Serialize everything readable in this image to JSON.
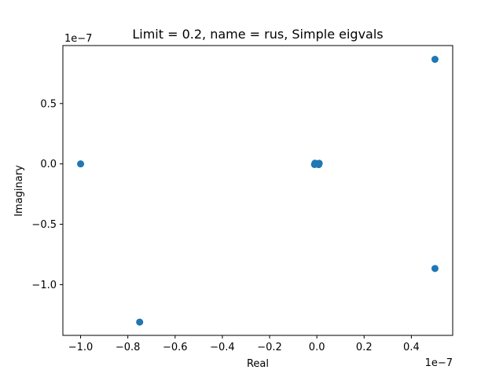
{
  "chart_data": {
    "type": "scatter",
    "title": "Limit = 0.2, name = rus, Simple eigvals",
    "xlabel": "Real",
    "ylabel": "Imaginary",
    "x_offset_label": "1e−7",
    "y_offset_label": "1e−7",
    "xlim": [
      -1.075,
      0.575
    ],
    "ylim": [
      -1.42,
      0.98
    ],
    "xticks": [
      -1.0,
      -0.8,
      -0.6,
      -0.4,
      -0.2,
      0.0,
      0.2,
      0.4
    ],
    "xtick_labels": [
      "−1.0",
      "−0.8",
      "−0.6",
      "−0.4",
      "−0.2",
      "0.0",
      "0.2",
      "0.4"
    ],
    "yticks": [
      -1.0,
      -0.5,
      0.0,
      0.5
    ],
    "ytick_labels": [
      "−1.0",
      "−0.5",
      "0.0",
      "0.5"
    ],
    "grid": false,
    "marker_color": "#1f77b4",
    "points": [
      {
        "x": -1.0,
        "y": 0.0
      },
      {
        "x": -0.75,
        "y": -1.31
      },
      {
        "x": 0.5,
        "y": 0.866
      },
      {
        "x": 0.5,
        "y": -0.866
      },
      {
        "x": 0.0,
        "y": 0.0
      },
      {
        "x": 0.005,
        "y": 0.0
      },
      {
        "x": -0.005,
        "y": 0.0
      },
      {
        "x": 0.01,
        "y": 0.005
      },
      {
        "x": -0.01,
        "y": -0.005
      },
      {
        "x": 0.008,
        "y": -0.006
      },
      {
        "x": -0.008,
        "y": 0.006
      }
    ]
  }
}
